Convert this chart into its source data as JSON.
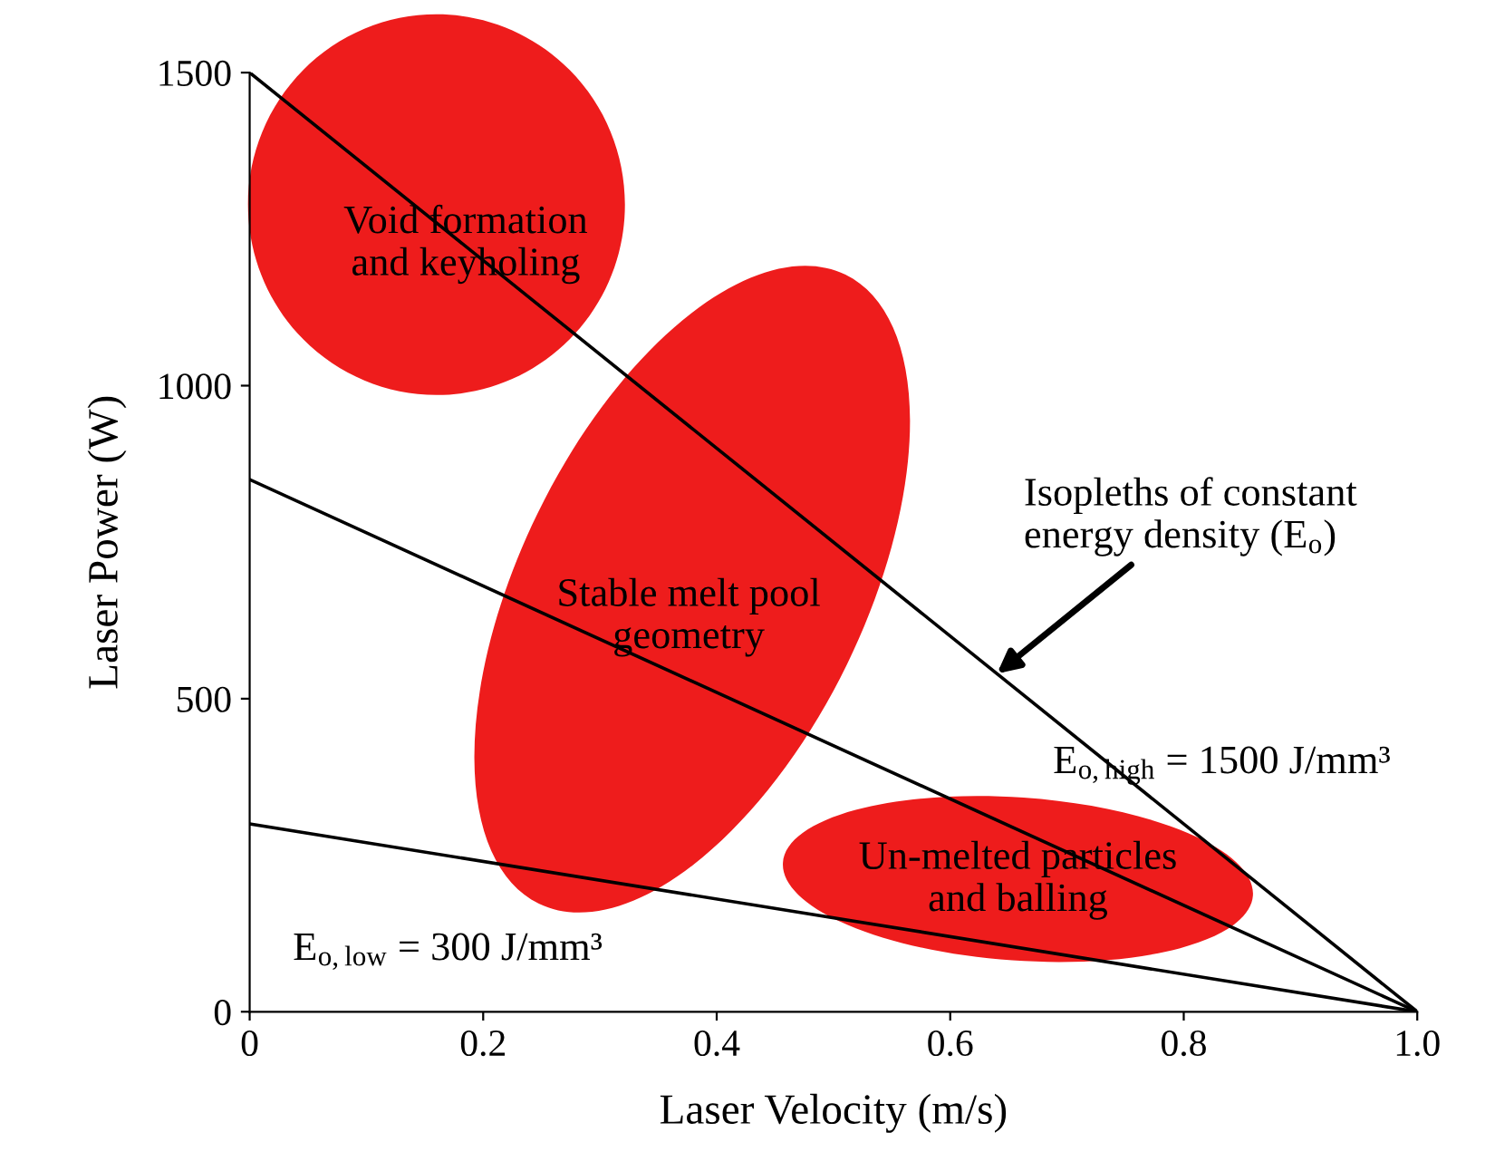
{
  "chart_data": {
    "type": "line",
    "xlabel": "Laser Velocity (m/s)",
    "ylabel": "Laser Power (W)",
    "x": [
      0,
      1.0
    ],
    "series": [
      {
        "color": "#000000",
        "values": [
          1500,
          0
        ]
      },
      {
        "color": "#000000",
        "values": [
          850,
          0
        ]
      },
      {
        "color": "#000000",
        "values": [
          300,
          0
        ]
      }
    ],
    "xlim": [
      0,
      1.0
    ],
    "ylim": [
      0,
      1500
    ],
    "xticks": [
      0,
      0.2,
      0.4,
      0.6,
      0.8,
      {
        "value": 1.0,
        "label": "1.0"
      }
    ],
    "yticks": [
      0,
      500,
      1000,
      1500
    ],
    "grid": false,
    "legend": false,
    "marker": "none",
    "line_style": "solid",
    "annotations": [
      "Void formation\nand keyholing",
      "Stable melt pool\ngeometry",
      "Un-melted particles\nand balling",
      {
        "text": "Isopleths of constant\nenergy density (E$_{o}$)",
        "x": 0.64,
        "y": 540
      },
      "E$_{o,high}$ = 1500 J/mm³",
      "E$_{o,low}$ = 300 J/mm³"
    ]
  }
}
